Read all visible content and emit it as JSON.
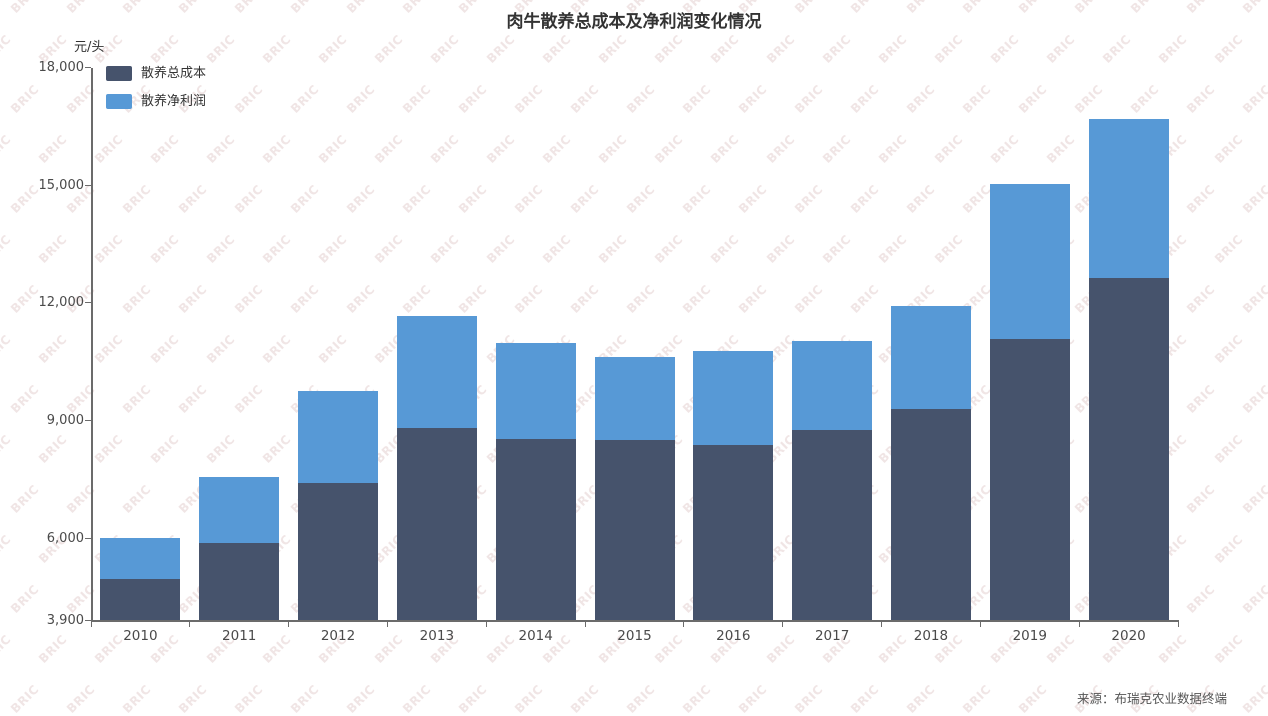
{
  "title": "肉牛散养总成本及净利润变化情况",
  "unit_label": "元/头",
  "source": "来源：布瑞克农业数据终端",
  "watermark": {
    "text": "BRIC"
  },
  "colors": {
    "cost_bar": "#46536C",
    "profit_bar": "#5799D6",
    "axis": "#6b6b6b",
    "tick_text": "#4a4a4a",
    "title_text": "#333333",
    "watermark_text": "#f0e5e5"
  },
  "chart_data": {
    "type": "bar",
    "stacked": true,
    "title": "肉牛散养总成本及净利润变化情况",
    "xlabel": "",
    "ylabel": "元/头",
    "grid": false,
    "legend_position": "top-left",
    "categories": [
      "2010",
      "2011",
      "2012",
      "2013",
      "2014",
      "2015",
      "2016",
      "2017",
      "2018",
      "2019",
      "2020"
    ],
    "series": [
      {
        "name": "散养总成本",
        "color": "#46536C",
        "values": [
          4960,
          5880,
          7410,
          8810,
          8530,
          8500,
          8380,
          8760,
          9290,
          11080,
          12630
        ]
      },
      {
        "name": "散养净利润",
        "color": "#5799D6",
        "values": [
          1040,
          1680,
          2340,
          2860,
          2450,
          2120,
          2390,
          2270,
          2630,
          3950,
          4060
        ]
      }
    ],
    "stack_totals": [
      6000,
      7560,
      9750,
      11670,
      10980,
      10620,
      10770,
      11030,
      11920,
      15030,
      16690
    ],
    "ylim": [
      3900,
      18000
    ],
    "y_ticks": [
      {
        "value": 3900,
        "label": "3,900"
      },
      {
        "value": 6000,
        "label": "6,000"
      },
      {
        "value": 9000,
        "label": "9,000"
      },
      {
        "value": 12000,
        "label": "12,000"
      },
      {
        "value": 15000,
        "label": "15,000"
      },
      {
        "value": 18000,
        "label": "18,000"
      }
    ]
  }
}
